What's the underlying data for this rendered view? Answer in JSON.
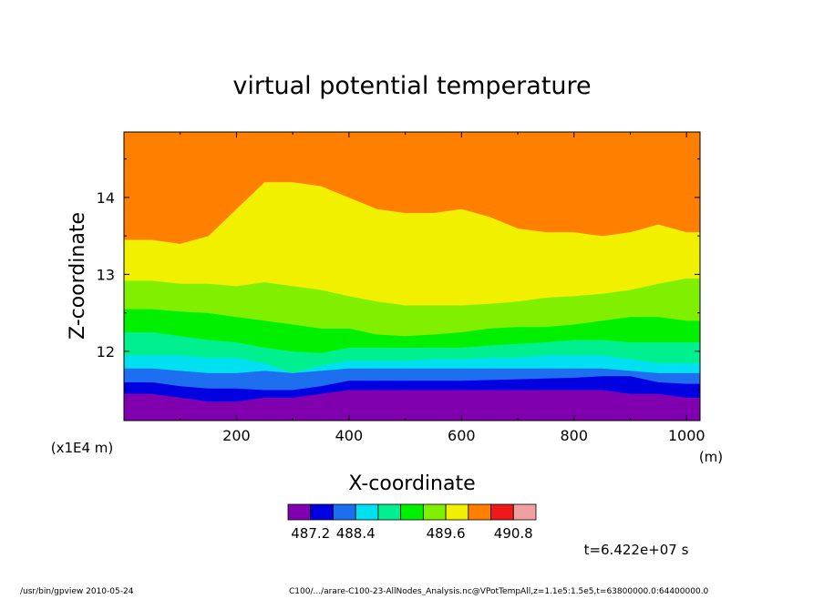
{
  "chart_data": {
    "type": "contour",
    "title": "virtual potential temperature",
    "xlabel": "X-coordinate",
    "ylabel": "Z-coordinate",
    "x_unit": "(m)",
    "y_unit": "(x1E4 m)",
    "xlim": [
      0,
      1024
    ],
    "ylim": [
      11.1,
      14.85
    ],
    "x_ticks": [
      200,
      400,
      600,
      800,
      1000
    ],
    "y_ticks": [
      12,
      13,
      14
    ],
    "x_tick_labels": [
      "200",
      "400",
      "600",
      "800",
      "1000"
    ],
    "y_tick_labels": [
      "12",
      "13",
      "14"
    ],
    "levels": [
      487.2,
      487.5,
      487.8,
      488.1,
      488.4,
      488.7,
      489.0,
      489.3,
      489.6,
      489.9,
      490.2,
      490.5,
      490.8
    ],
    "colorbar_colors": [
      "#8000b0",
      "#0000e0",
      "#1e6ef0",
      "#00e0f0",
      "#00f090",
      "#00f000",
      "#80f000",
      "#f0f000",
      "#ff8000",
      "#f01818",
      "#f0a0a0"
    ],
    "colorbar_labels": [
      "487.2",
      "488.4",
      "489.6",
      "490.8"
    ],
    "band_colors": [
      "#8000b0",
      "#0000e0",
      "#1e6ef0",
      "#00e0f0",
      "#00f090",
      "#00f000",
      "#80f000",
      "#f0f000",
      "#ff8000"
    ],
    "boundary_x": [
      0,
      50,
      100,
      150,
      200,
      250,
      300,
      350,
      400,
      450,
      500,
      550,
      600,
      650,
      700,
      750,
      800,
      850,
      900,
      950,
      1000,
      1024
    ],
    "boundaries": [
      [
        11.45,
        11.45,
        11.4,
        11.35,
        11.35,
        11.4,
        11.4,
        11.45,
        11.5,
        11.5,
        11.5,
        11.5,
        11.5,
        11.5,
        11.5,
        11.5,
        11.5,
        11.5,
        11.45,
        11.45,
        11.4,
        11.4
      ],
      [
        11.6,
        11.6,
        11.55,
        11.52,
        11.52,
        11.5,
        11.5,
        11.55,
        11.62,
        11.62,
        11.62,
        11.62,
        11.62,
        11.63,
        11.64,
        11.65,
        11.66,
        11.68,
        11.68,
        11.6,
        11.58,
        11.58
      ],
      [
        11.78,
        11.78,
        11.75,
        11.72,
        11.72,
        11.75,
        11.72,
        11.75,
        11.78,
        11.78,
        11.78,
        11.78,
        11.78,
        11.78,
        11.78,
        11.78,
        11.78,
        11.78,
        11.75,
        11.72,
        11.72,
        11.72
      ],
      [
        11.95,
        11.95,
        11.95,
        11.92,
        11.92,
        11.85,
        11.72,
        11.82,
        11.88,
        11.88,
        11.88,
        11.9,
        11.9,
        11.92,
        11.92,
        11.95,
        11.95,
        11.95,
        11.9,
        11.85,
        11.85,
        11.85
      ],
      [
        12.25,
        12.25,
        12.2,
        12.15,
        12.12,
        12.05,
        12.0,
        11.98,
        12.05,
        12.05,
        12.05,
        12.05,
        12.05,
        12.08,
        12.1,
        12.12,
        12.15,
        12.15,
        12.12,
        12.12,
        12.12,
        12.12
      ],
      [
        12.55,
        12.55,
        12.52,
        12.5,
        12.45,
        12.4,
        12.35,
        12.3,
        12.3,
        12.22,
        12.2,
        12.22,
        12.25,
        12.3,
        12.32,
        12.32,
        12.35,
        12.4,
        12.45,
        12.45,
        12.4,
        12.4
      ],
      [
        12.92,
        12.92,
        12.88,
        12.88,
        12.85,
        12.9,
        12.85,
        12.8,
        12.72,
        12.65,
        12.6,
        12.6,
        12.6,
        12.62,
        12.65,
        12.7,
        12.72,
        12.75,
        12.8,
        12.88,
        12.95,
        12.95
      ],
      [
        13.45,
        13.45,
        13.4,
        13.5,
        13.85,
        14.2,
        14.2,
        14.15,
        14.0,
        13.85,
        13.8,
        13.8,
        13.85,
        13.75,
        13.6,
        13.55,
        13.55,
        13.5,
        13.55,
        13.65,
        13.55,
        13.55
      ]
    ]
  },
  "footer": {
    "time_label": "t=6.422e+07 s",
    "program": "/usr/bin/gpview  2010-05-24",
    "source": "C100/.../arare-C100-23-AllNodes_Analysis.nc@VPotTempAll,z=1.1e5:1.5e5,t=63800000.0:64400000.0"
  }
}
